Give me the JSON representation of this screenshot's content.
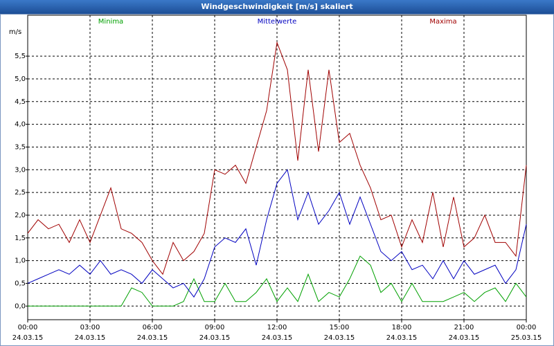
{
  "chart_data": {
    "type": "line",
    "title": "Windgeschwindigkeit [m/s] skaliert",
    "y_label": "m/s",
    "x": [
      0,
      0.5,
      1,
      1.5,
      2,
      2.5,
      3,
      3.5,
      4,
      4.5,
      5,
      5.5,
      6,
      6.5,
      7,
      7.5,
      8,
      8.5,
      9,
      9.5,
      10,
      10.5,
      11,
      11.5,
      12,
      12.5,
      13,
      13.5,
      14,
      14.5,
      15,
      15.5,
      16,
      16.5,
      17,
      17.5,
      18,
      18.5,
      19,
      19.5,
      20,
      20.5,
      21,
      21.5,
      22,
      22.5,
      23,
      23.5,
      24
    ],
    "series": [
      {
        "name": "Minima",
        "color": "#00a000",
        "values": [
          0,
          0,
          0,
          0,
          0,
          0,
          0,
          0,
          0,
          0,
          0.4,
          0.3,
          0,
          0,
          0,
          0.1,
          0.6,
          0.1,
          0.1,
          0.5,
          0.1,
          0.1,
          0.3,
          0.6,
          0.1,
          0.4,
          0.1,
          0.7,
          0.1,
          0.3,
          0.2,
          0.6,
          1.1,
          0.9,
          0.3,
          0.5,
          0.1,
          0.5,
          0.1,
          0.1,
          0.1,
          0.2,
          0.3,
          0.1,
          0.3,
          0.4,
          0.1,
          0.5,
          0.2
        ]
      },
      {
        "name": "Mittelwerte",
        "color": "#0000c0",
        "values": [
          0.5,
          0.6,
          0.7,
          0.8,
          0.7,
          0.9,
          0.7,
          1.0,
          0.7,
          0.8,
          0.7,
          0.5,
          0.8,
          0.6,
          0.4,
          0.5,
          0.2,
          0.6,
          1.3,
          1.5,
          1.4,
          1.7,
          0.9,
          1.9,
          2.7,
          3.0,
          1.9,
          2.5,
          1.8,
          2.1,
          2.5,
          1.8,
          2.4,
          1.8,
          1.2,
          1.0,
          1.2,
          0.8,
          0.9,
          0.6,
          1.0,
          0.6,
          1.0,
          0.7,
          0.8,
          0.9,
          0.5,
          0.8,
          1.8
        ]
      },
      {
        "name": "Maxima",
        "color": "#a00000",
        "values": [
          1.6,
          1.9,
          1.7,
          1.8,
          1.4,
          1.9,
          1.4,
          2.0,
          2.6,
          1.7,
          1.6,
          1.4,
          1.0,
          0.7,
          1.4,
          1.0,
          1.2,
          1.6,
          3.0,
          2.9,
          3.1,
          2.7,
          3.5,
          4.3,
          5.8,
          5.2,
          3.2,
          5.2,
          3.4,
          5.2,
          3.6,
          3.8,
          3.1,
          2.6,
          1.9,
          2.0,
          1.3,
          1.9,
          1.4,
          2.5,
          1.3,
          2.4,
          1.3,
          1.5,
          2.0,
          1.4,
          1.4,
          1.1,
          3.1
        ]
      }
    ],
    "xlim": [
      0,
      24
    ],
    "xticks": [
      {
        "value": 0,
        "label": "00:00\n24.03.15"
      },
      {
        "value": 3,
        "label": "03:00\n24.03.15"
      },
      {
        "value": 6,
        "label": "06:00\n24.03.15"
      },
      {
        "value": 9,
        "label": "09:00\n24.03.15"
      },
      {
        "value": 12,
        "label": "12:00\n24.03.15"
      },
      {
        "value": 15,
        "label": "15:00\n24.03.15"
      },
      {
        "value": 18,
        "label": "18:00\n24.03.15"
      },
      {
        "value": 21,
        "label": "21:00\n24.03.15"
      },
      {
        "value": 24,
        "label": "00:00\n25.03.15"
      }
    ],
    "ylim": [
      -0.3,
      6.4
    ],
    "yticks": [
      {
        "value": 0,
        "label": "0,0"
      },
      {
        "value": 0.5,
        "label": "0,5"
      },
      {
        "value": 1,
        "label": "1,0"
      },
      {
        "value": 1.5,
        "label": "1,5"
      },
      {
        "value": 2,
        "label": "2,0"
      },
      {
        "value": 2.5,
        "label": "2,5"
      },
      {
        "value": 3,
        "label": "3,0"
      },
      {
        "value": 3.5,
        "label": "3,5"
      },
      {
        "value": 4,
        "label": "4,0"
      },
      {
        "value": 4.5,
        "label": "4,5"
      },
      {
        "value": 5,
        "label": "5,0"
      },
      {
        "value": 5.5,
        "label": "5,5"
      }
    ],
    "grid": true,
    "legend": "top"
  }
}
